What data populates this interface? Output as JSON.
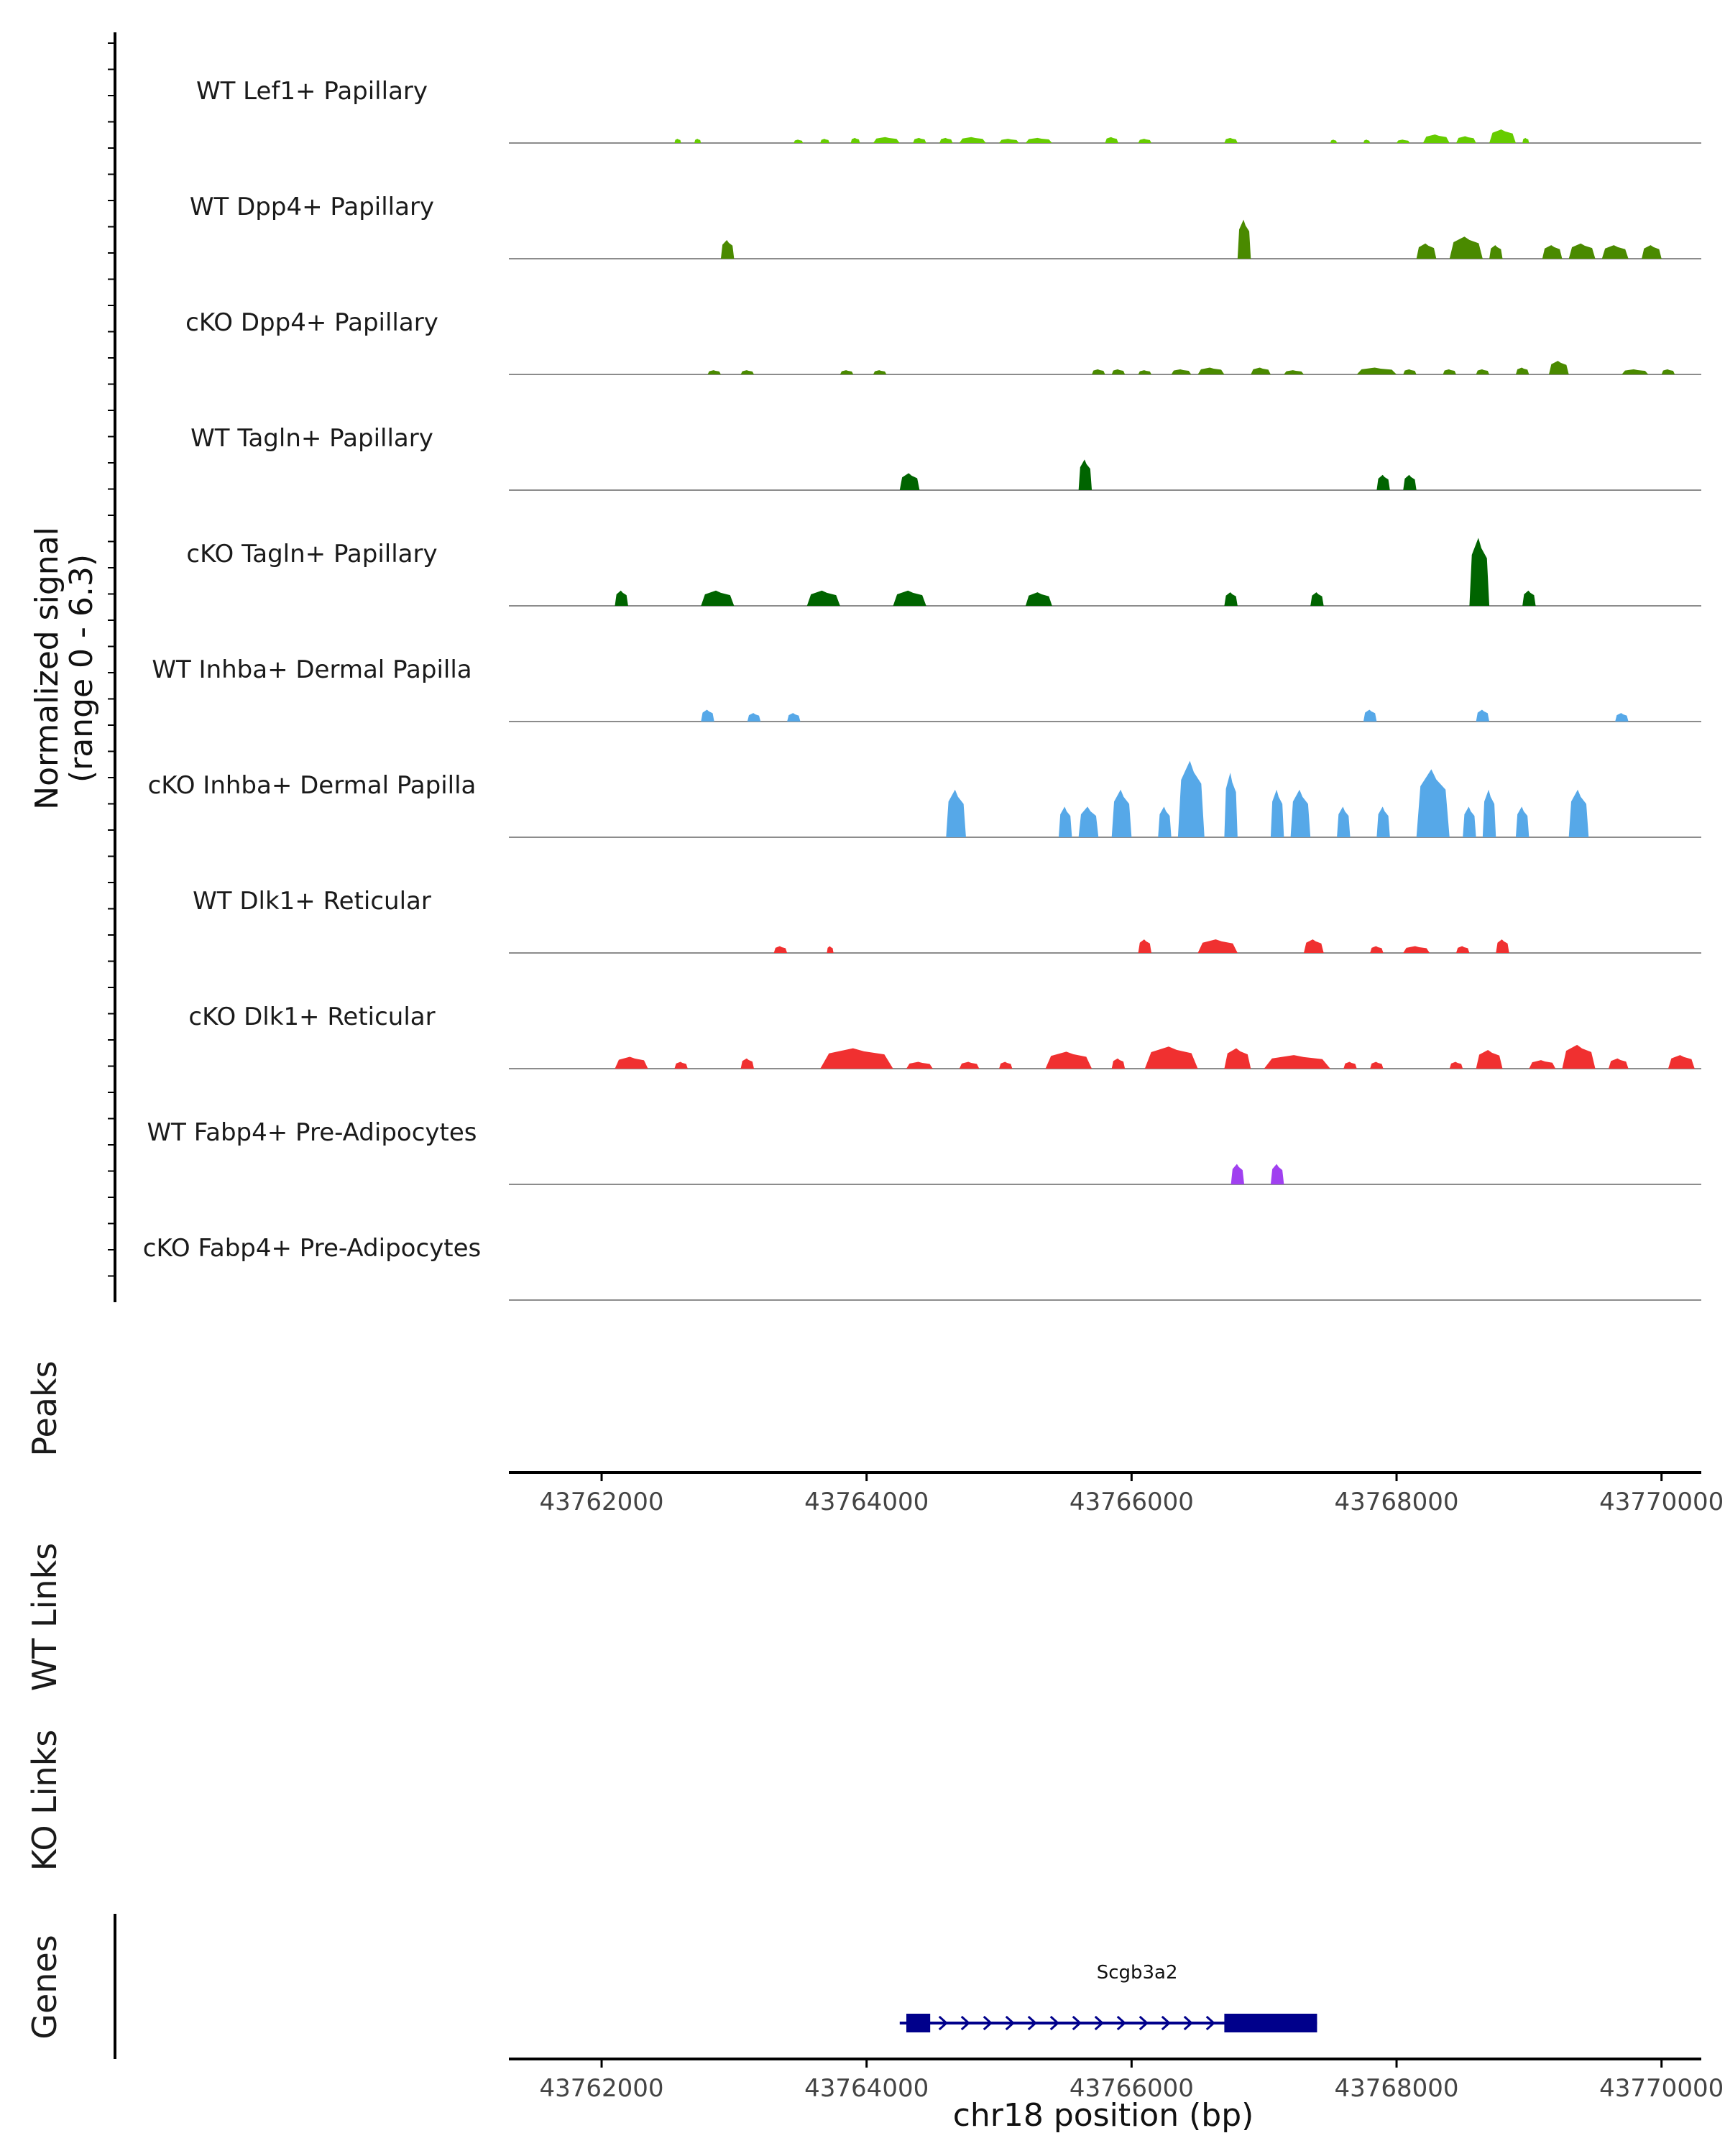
{
  "chart_data": {
    "type": "area",
    "title": "",
    "region": "chr18",
    "xlabel": "chr18 position (bp)",
    "xlim": [
      43761300,
      43770300
    ],
    "x_ticks": [
      43762000,
      43764000,
      43766000,
      43768000,
      43770000
    ],
    "x_tick_labels": [
      "43762000",
      "43764000",
      "43766000",
      "43768000",
      "43770000"
    ],
    "ylabel_line1": "Normalized signal",
    "ylabel_line2": "(range 0 - 6.3)",
    "ylim": [
      0,
      6.3
    ],
    "panel_labels": {
      "peaks": "Peaks",
      "wt_links": "WT Links",
      "ko_links": "KO Links",
      "genes": "Genes"
    },
    "series": [
      {
        "name": "WT Lef1+ Papillary",
        "color": "#66CC00",
        "peaks": [
          [
            43762550,
            43762600,
            0.25
          ],
          [
            43762700,
            43762750,
            0.25
          ],
          [
            43763450,
            43763520,
            0.2
          ],
          [
            43763650,
            43763720,
            0.25
          ],
          [
            43763880,
            43763950,
            0.3
          ],
          [
            43764050,
            43764250,
            0.35
          ],
          [
            43764350,
            43764450,
            0.3
          ],
          [
            43764550,
            43764650,
            0.3
          ],
          [
            43764700,
            43764900,
            0.35
          ],
          [
            43765000,
            43765150,
            0.25
          ],
          [
            43765200,
            43765400,
            0.3
          ],
          [
            43765800,
            43765900,
            0.35
          ],
          [
            43766050,
            43766150,
            0.25
          ],
          [
            43766700,
            43766800,
            0.3
          ],
          [
            43767500,
            43767550,
            0.2
          ],
          [
            43767750,
            43767800,
            0.2
          ],
          [
            43768000,
            43768100,
            0.2
          ],
          [
            43768200,
            43768400,
            0.5
          ],
          [
            43768450,
            43768600,
            0.4
          ],
          [
            43768700,
            43768900,
            0.8
          ],
          [
            43768950,
            43769000,
            0.3
          ]
        ]
      },
      {
        "name": "WT Dpp4+ Papillary",
        "color": "#4A8A00",
        "peaks": [
          [
            43762900,
            43763000,
            1.1
          ],
          [
            43766800,
            43766900,
            2.3
          ],
          [
            43768150,
            43768300,
            0.9
          ],
          [
            43768400,
            43768650,
            1.3
          ],
          [
            43768700,
            43768800,
            0.8
          ],
          [
            43769100,
            43769250,
            0.8
          ],
          [
            43769300,
            43769500,
            0.9
          ],
          [
            43769550,
            43769750,
            0.8
          ],
          [
            43769850,
            43770000,
            0.8
          ]
        ]
      },
      {
        "name": "cKO Dpp4+ Papillary",
        "color": "#4A8A00",
        "peaks": [
          [
            43762800,
            43762900,
            0.25
          ],
          [
            43763050,
            43763150,
            0.25
          ],
          [
            43763800,
            43763900,
            0.25
          ],
          [
            43764050,
            43764150,
            0.25
          ],
          [
            43765700,
            43765800,
            0.3
          ],
          [
            43765850,
            43765950,
            0.3
          ],
          [
            43766050,
            43766150,
            0.25
          ],
          [
            43766300,
            43766450,
            0.3
          ],
          [
            43766500,
            43766700,
            0.4
          ],
          [
            43766900,
            43767050,
            0.4
          ],
          [
            43767150,
            43767300,
            0.25
          ],
          [
            43767700,
            43768000,
            0.4
          ],
          [
            43768050,
            43768150,
            0.3
          ],
          [
            43768350,
            43768450,
            0.3
          ],
          [
            43768600,
            43768700,
            0.3
          ],
          [
            43768900,
            43769000,
            0.4
          ],
          [
            43769150,
            43769300,
            0.8
          ],
          [
            43769700,
            43769900,
            0.3
          ],
          [
            43770000,
            43770100,
            0.3
          ]
        ]
      },
      {
        "name": "WT Tagln+ Papillary",
        "color": "#006400",
        "peaks": [
          [
            43764250,
            43764400,
            1.0
          ],
          [
            43765600,
            43765700,
            1.8
          ],
          [
            43767850,
            43767950,
            0.9
          ],
          [
            43768050,
            43768150,
            0.9
          ]
        ]
      },
      {
        "name": "cKO Tagln+ Papillary",
        "color": "#006400",
        "peaks": [
          [
            43762100,
            43762200,
            0.9
          ],
          [
            43762750,
            43763000,
            0.9
          ],
          [
            43763550,
            43763800,
            0.9
          ],
          [
            43764200,
            43764450,
            0.9
          ],
          [
            43765200,
            43765400,
            0.8
          ],
          [
            43766700,
            43766800,
            0.8
          ],
          [
            43767350,
            43767450,
            0.8
          ],
          [
            43768550,
            43768700,
            4.0
          ],
          [
            43768950,
            43769050,
            0.9
          ]
        ]
      },
      {
        "name": "WT Inhba+ Dermal Papilla",
        "color": "#56A8E8",
        "peaks": [
          [
            43762750,
            43762850,
            0.7
          ],
          [
            43763100,
            43763200,
            0.5
          ],
          [
            43763400,
            43763500,
            0.5
          ],
          [
            43767750,
            43767850,
            0.7
          ],
          [
            43768600,
            43768700,
            0.7
          ],
          [
            43769650,
            43769750,
            0.5
          ]
        ]
      },
      {
        "name": "cKO Inhba+ Dermal Papilla",
        "color": "#56A8E8",
        "peaks": [
          [
            43764600,
            43764750,
            2.8
          ],
          [
            43765450,
            43765550,
            1.8
          ],
          [
            43765600,
            43765750,
            1.8
          ],
          [
            43765850,
            43766000,
            2.8
          ],
          [
            43766200,
            43766300,
            1.8
          ],
          [
            43766350,
            43766550,
            4.5
          ],
          [
            43766700,
            43766800,
            3.8
          ],
          [
            43767050,
            43767150,
            2.8
          ],
          [
            43767200,
            43767350,
            2.8
          ],
          [
            43767550,
            43767650,
            1.8
          ],
          [
            43767850,
            43767950,
            1.8
          ],
          [
            43768150,
            43768400,
            4.0
          ],
          [
            43768500,
            43768600,
            1.8
          ],
          [
            43768650,
            43768750,
            2.8
          ],
          [
            43768900,
            43769000,
            1.8
          ],
          [
            43769300,
            43769450,
            2.8
          ]
        ]
      },
      {
        "name": "WT Dlk1+ Reticular",
        "color": "#F03030",
        "peaks": [
          [
            43763300,
            43763400,
            0.4
          ],
          [
            43763700,
            43763750,
            0.4
          ],
          [
            43766050,
            43766150,
            0.8
          ],
          [
            43766500,
            43766800,
            0.8
          ],
          [
            43767300,
            43767450,
            0.8
          ],
          [
            43767800,
            43767900,
            0.4
          ],
          [
            43768050,
            43768250,
            0.4
          ],
          [
            43768450,
            43768550,
            0.4
          ],
          [
            43768750,
            43768850,
            0.8
          ]
        ]
      },
      {
        "name": "cKO Dlk1+ Reticular",
        "color": "#F03030",
        "peaks": [
          [
            43762100,
            43762350,
            0.7
          ],
          [
            43762550,
            43762650,
            0.4
          ],
          [
            43763050,
            43763150,
            0.6
          ],
          [
            43763650,
            43764200,
            1.2
          ],
          [
            43764300,
            43764500,
            0.4
          ],
          [
            43764700,
            43764850,
            0.4
          ],
          [
            43765000,
            43765100,
            0.4
          ],
          [
            43765350,
            43765700,
            1.0
          ],
          [
            43765850,
            43765950,
            0.6
          ],
          [
            43766100,
            43766500,
            1.3
          ],
          [
            43766700,
            43766900,
            1.2
          ],
          [
            43767000,
            43767500,
            0.8
          ],
          [
            43767600,
            43767700,
            0.4
          ],
          [
            43767800,
            43767900,
            0.4
          ],
          [
            43768400,
            43768500,
            0.4
          ],
          [
            43768600,
            43768800,
            1.1
          ],
          [
            43769000,
            43769200,
            0.5
          ],
          [
            43769250,
            43769500,
            1.4
          ],
          [
            43769600,
            43769750,
            0.6
          ],
          [
            43770050,
            43770250,
            0.8
          ]
        ]
      },
      {
        "name": "WT Fabp4+ Pre-Adipocytes",
        "color": "#A040F0",
        "peaks": [
          [
            43766750,
            43766850,
            1.2
          ],
          [
            43767050,
            43767150,
            1.2
          ]
        ]
      },
      {
        "name": "cKO Fabp4+ Pre-Adipocytes",
        "color": "#A040F0",
        "peaks": []
      }
    ],
    "gene": {
      "name": "Scgb3a2",
      "strand": "+",
      "start": 43764250,
      "end": 43767400,
      "exons": [
        [
          43764300,
          43764480
        ],
        [
          43766700,
          43767400
        ]
      ]
    }
  }
}
